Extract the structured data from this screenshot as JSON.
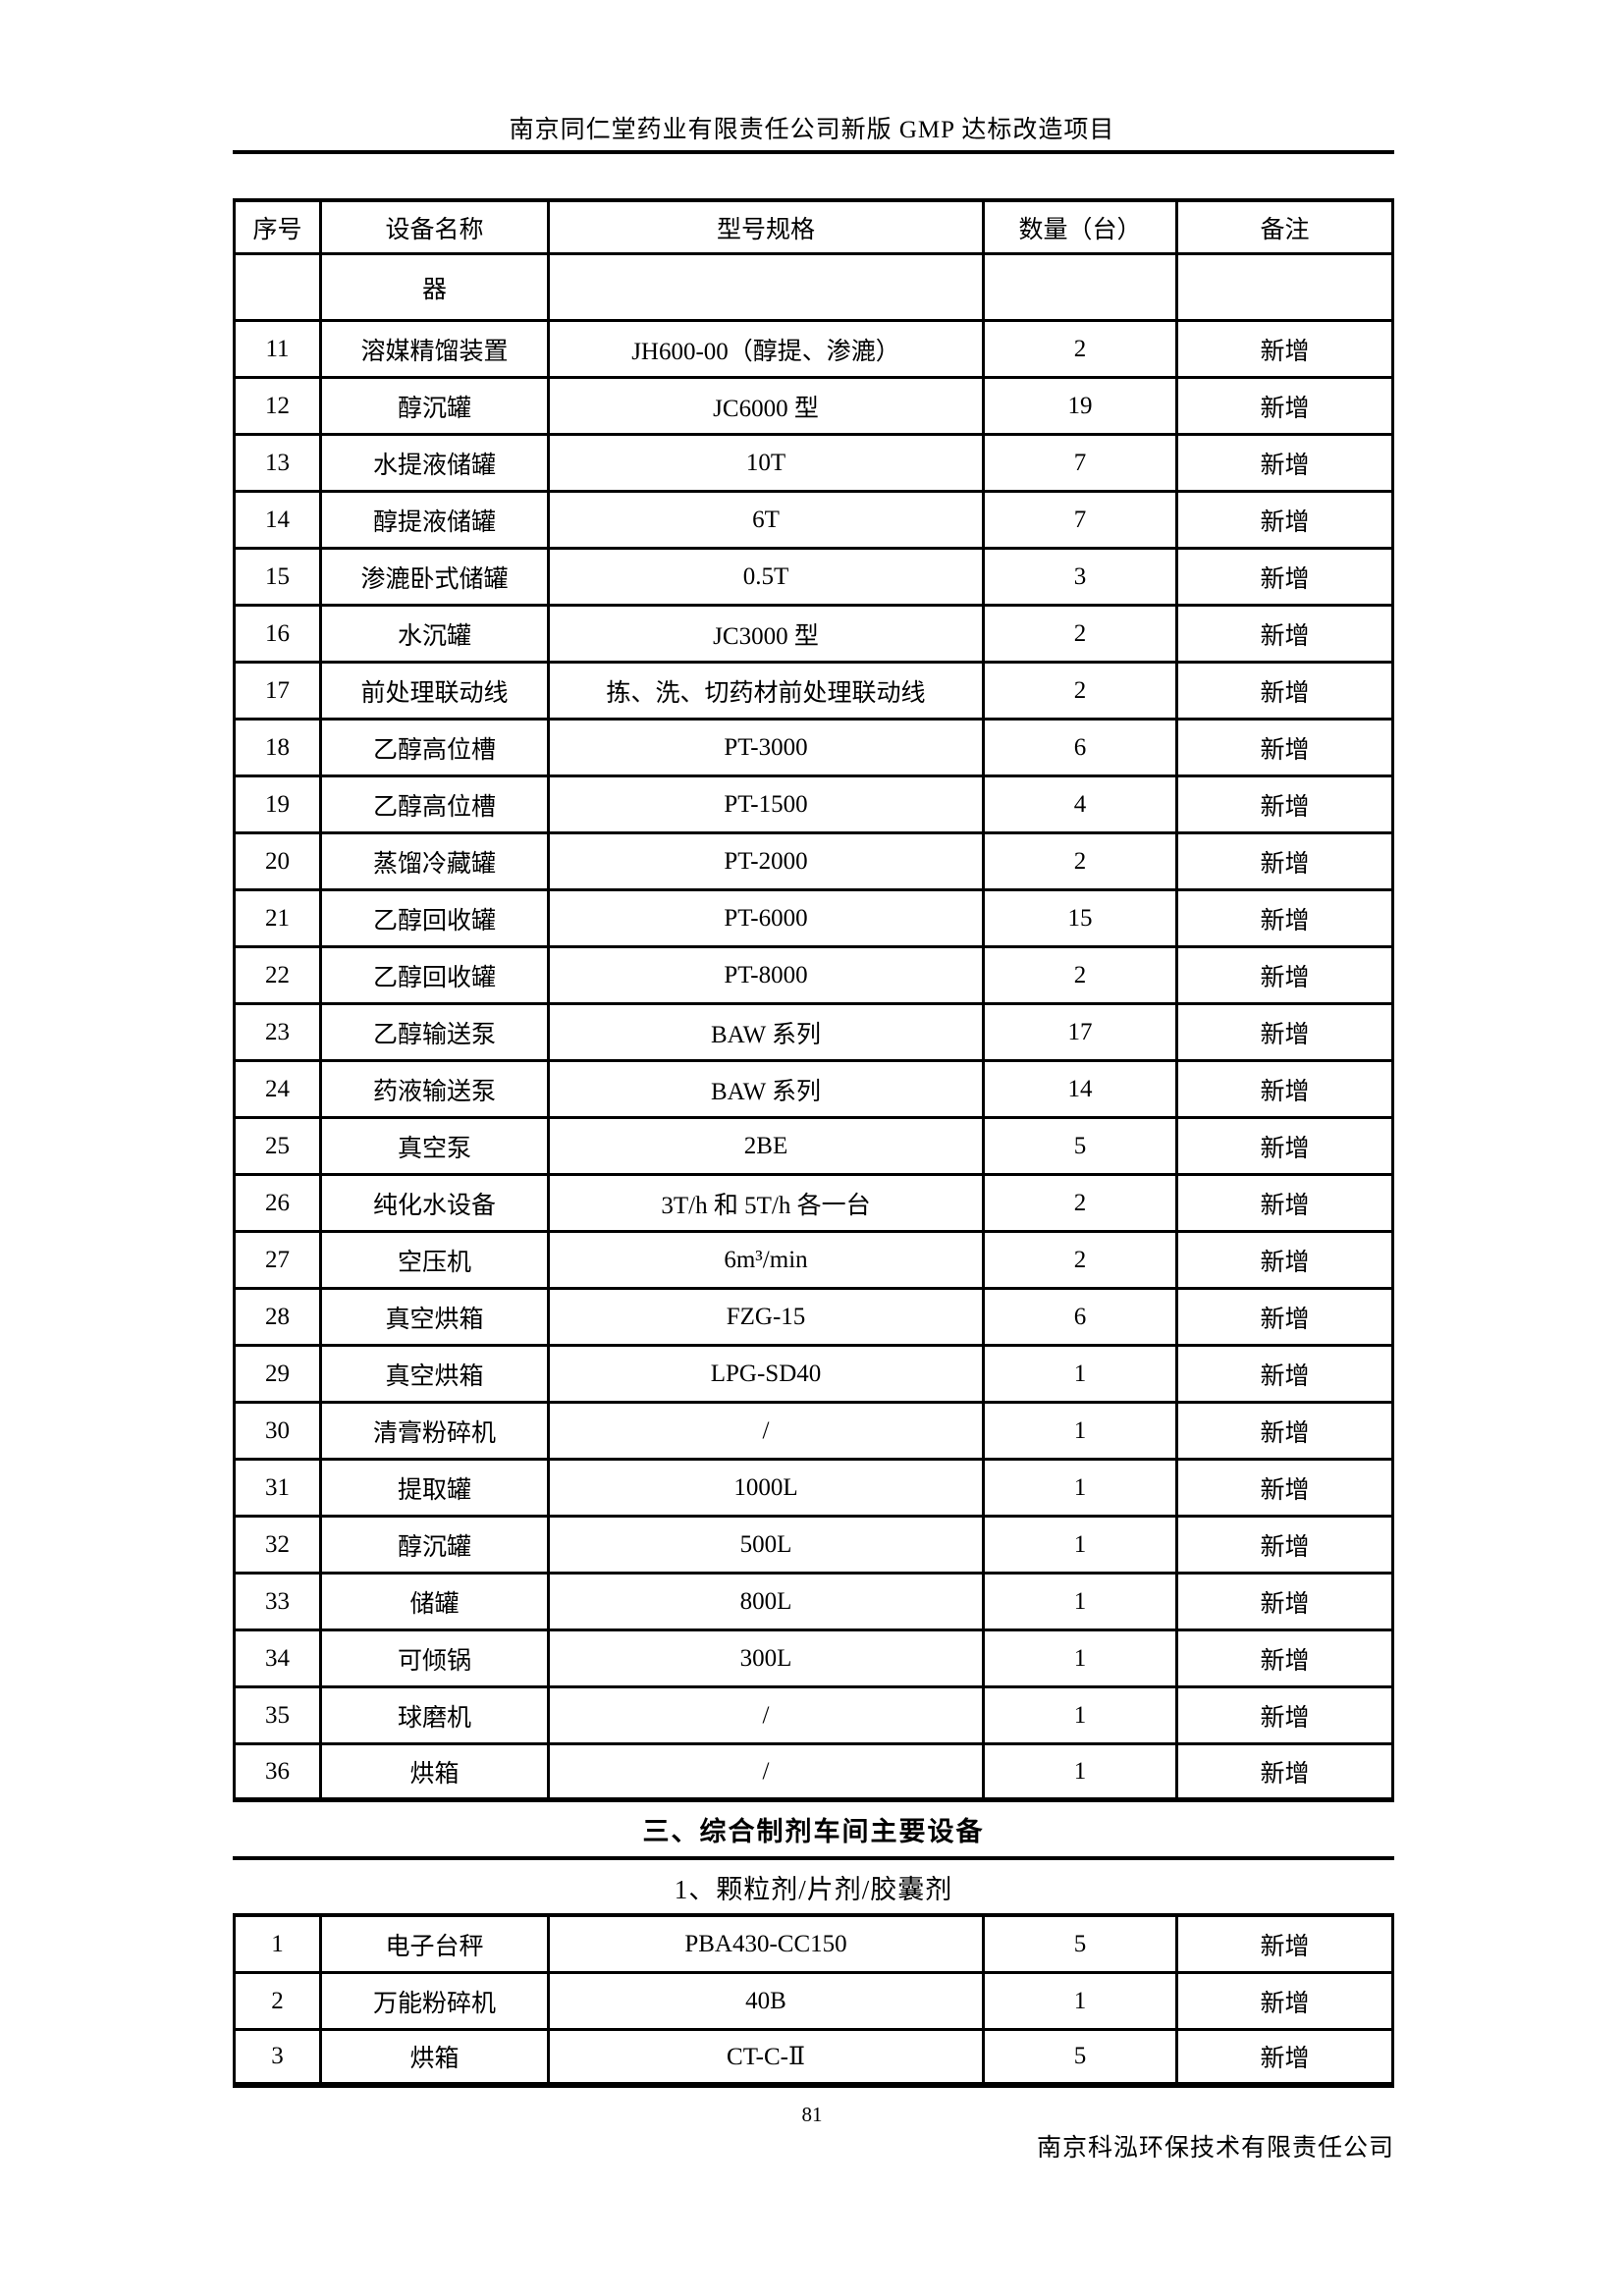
{
  "header": {
    "title": "南京同仁堂药业有限责任公司新版 GMP 达标改造项目"
  },
  "table": {
    "columns": [
      "序号",
      "设备名称",
      "型号规格",
      "数量（台）",
      "备注"
    ],
    "continuation": {
      "seq": "",
      "name": "器",
      "model": "",
      "qty": "",
      "note": ""
    },
    "rows": [
      {
        "seq": "11",
        "name": "溶媒精馏装置",
        "model": "JH600-00（醇提、渗漉）",
        "qty": "2",
        "note": "新增"
      },
      {
        "seq": "12",
        "name": "醇沉罐",
        "model": "JC6000 型",
        "qty": "19",
        "note": "新增"
      },
      {
        "seq": "13",
        "name": "水提液储罐",
        "model": "10T",
        "qty": "7",
        "note": "新增"
      },
      {
        "seq": "14",
        "name": "醇提液储罐",
        "model": "6T",
        "qty": "7",
        "note": "新增"
      },
      {
        "seq": "15",
        "name": "渗漉卧式储罐",
        "model": "0.5T",
        "qty": "3",
        "note": "新增"
      },
      {
        "seq": "16",
        "name": "水沉罐",
        "model": "JC3000 型",
        "qty": "2",
        "note": "新增"
      },
      {
        "seq": "17",
        "name": "前处理联动线",
        "model": "拣、洗、切药材前处理联动线",
        "qty": "2",
        "note": "新增"
      },
      {
        "seq": "18",
        "name": "乙醇高位槽",
        "model": "PT-3000",
        "qty": "6",
        "note": "新增"
      },
      {
        "seq": "19",
        "name": "乙醇高位槽",
        "model": "PT-1500",
        "qty": "4",
        "note": "新增"
      },
      {
        "seq": "20",
        "name": "蒸馏冷藏罐",
        "model": "PT-2000",
        "qty": "2",
        "note": "新增"
      },
      {
        "seq": "21",
        "name": "乙醇回收罐",
        "model": "PT-6000",
        "qty": "15",
        "note": "新增"
      },
      {
        "seq": "22",
        "name": "乙醇回收罐",
        "model": "PT-8000",
        "qty": "2",
        "note": "新增"
      },
      {
        "seq": "23",
        "name": "乙醇输送泵",
        "model": "BAW 系列",
        "qty": "17",
        "note": "新增"
      },
      {
        "seq": "24",
        "name": "药液输送泵",
        "model": "BAW 系列",
        "qty": "14",
        "note": "新增"
      },
      {
        "seq": "25",
        "name": "真空泵",
        "model": "2BE",
        "qty": "5",
        "note": "新增"
      },
      {
        "seq": "26",
        "name": "纯化水设备",
        "model": "3T/h 和 5T/h 各一台",
        "qty": "2",
        "note": "新增"
      },
      {
        "seq": "27",
        "name": "空压机",
        "model": "6m³/min",
        "qty": "2",
        "note": "新增"
      },
      {
        "seq": "28",
        "name": "真空烘箱",
        "model": "FZG-15",
        "qty": "6",
        "note": "新增"
      },
      {
        "seq": "29",
        "name": "真空烘箱",
        "model": "LPG-SD40",
        "qty": "1",
        "note": "新增"
      },
      {
        "seq": "30",
        "name": "清膏粉碎机",
        "model": "/",
        "qty": "1",
        "note": "新增"
      },
      {
        "seq": "31",
        "name": "提取罐",
        "model": "1000L",
        "qty": "1",
        "note": "新增"
      },
      {
        "seq": "32",
        "name": "醇沉罐",
        "model": "500L",
        "qty": "1",
        "note": "新增"
      },
      {
        "seq": "33",
        "name": "储罐",
        "model": "800L",
        "qty": "1",
        "note": "新增"
      },
      {
        "seq": "34",
        "name": "可倾锅",
        "model": "300L",
        "qty": "1",
        "note": "新增"
      },
      {
        "seq": "35",
        "name": "球磨机",
        "model": "/",
        "qty": "1",
        "note": "新增"
      },
      {
        "seq": "36",
        "name": "烘箱",
        "model": "/",
        "qty": "1",
        "note": "新增"
      }
    ],
    "section_title": "三、综合制剂车间主要设备",
    "subsection_title": "1、颗粒剂/片剂/胶囊剂",
    "rows2": [
      {
        "seq": "1",
        "name": "电子台秤",
        "model": "PBA430-CC150",
        "qty": "5",
        "note": "新增"
      },
      {
        "seq": "2",
        "name": "万能粉碎机",
        "model": "40B",
        "qty": "1",
        "note": "新增"
      },
      {
        "seq": "3",
        "name": "烘箱",
        "model": "CT-C-Ⅱ",
        "qty": "5",
        "note": "新增"
      }
    ]
  },
  "footer": {
    "page_number": "81",
    "company": "南京科泓环保技术有限责任公司"
  }
}
